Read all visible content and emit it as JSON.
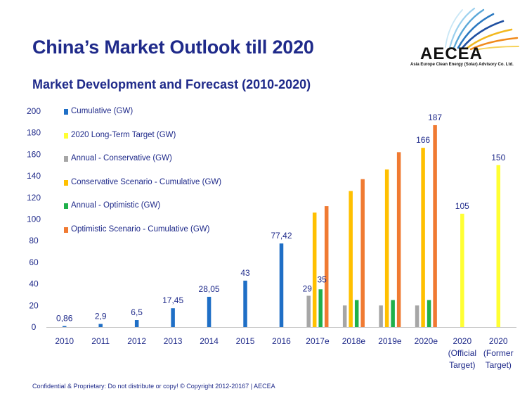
{
  "header": {
    "title": "China’s Market Outlook till 2020",
    "subtitle": "Market Development and Forecast (2010-2020)"
  },
  "logo": {
    "name": "AECEA",
    "tagline": "Asia Europe Clean Energy (Solar) Advisory Co. Ltd."
  },
  "footer": {
    "text": "Confidential & Proprietary: Do not distribute or copy! © Copyright 2012-20167 | AECEA"
  },
  "colors": {
    "title": "#1f2a8a",
    "cumulative": "#1f6fc6",
    "target": "#ffff33",
    "annual_conservative": "#a6a6a6",
    "conservative_cumulative": "#ffc000",
    "annual_optimistic": "#1fb04a",
    "optimistic_cumulative": "#f07a32"
  },
  "chart_data": {
    "type": "bar",
    "title": "Market Development and Forecast (2010-2020)",
    "xlabel": "",
    "ylabel": "",
    "ylim": [
      0,
      200
    ],
    "yticks": [
      0,
      20,
      40,
      60,
      80,
      100,
      120,
      140,
      160,
      180,
      200
    ],
    "categories": [
      "2010",
      "2011",
      "2012",
      "2013",
      "2014",
      "2015",
      "2016",
      "2017e",
      "2018e",
      "2019e",
      "2020e",
      "2020 (Official Target)",
      "2020 (Former Target)"
    ],
    "category_labels": [
      [
        "2010"
      ],
      [
        "2011"
      ],
      [
        "2012"
      ],
      [
        "2013"
      ],
      [
        "2014"
      ],
      [
        "2015"
      ],
      [
        "2016"
      ],
      [
        "2017e"
      ],
      [
        "2018e"
      ],
      [
        "2019e"
      ],
      [
        "2020e"
      ],
      [
        "2020",
        "(Official",
        "Target)"
      ],
      [
        "2020",
        "(Former",
        "Target)"
      ]
    ],
    "legend_position": "top-left",
    "series": [
      {
        "key": "cumulative",
        "name": "Cumulative (GW)",
        "color_key": "cumulative",
        "values": [
          0.86,
          2.9,
          6.5,
          17.45,
          28.05,
          43,
          77.42,
          null,
          null,
          null,
          null,
          null,
          null
        ]
      },
      {
        "key": "target",
        "name": "2020 Long-Term Target (GW)",
        "color_key": "target",
        "values": [
          null,
          null,
          null,
          null,
          null,
          null,
          null,
          null,
          null,
          null,
          null,
          105,
          150
        ]
      },
      {
        "key": "annual_conservative",
        "name": "Annual - Conservative (GW)",
        "color_key": "annual_conservative",
        "values": [
          null,
          null,
          null,
          null,
          null,
          null,
          null,
          29,
          20,
          20,
          20,
          null,
          null
        ]
      },
      {
        "key": "conservative_cumulative",
        "name": "Conservative Scenario - Cumulative (GW)",
        "color_key": "conservative_cumulative",
        "values": [
          null,
          null,
          null,
          null,
          null,
          null,
          null,
          106,
          126,
          146,
          166,
          null,
          null
        ]
      },
      {
        "key": "annual_optimistic",
        "name": "Annual - Optimistic (GW)",
        "color_key": "annual_optimistic",
        "values": [
          null,
          null,
          null,
          null,
          null,
          null,
          null,
          35,
          25,
          25,
          25,
          null,
          null
        ]
      },
      {
        "key": "optimistic_cumulative",
        "name": "Optimistic Scenario - Cumulative (GW)",
        "color_key": "optimistic_cumulative",
        "values": [
          null,
          null,
          null,
          null,
          null,
          null,
          null,
          112,
          137,
          162,
          187,
          null,
          null
        ]
      }
    ],
    "data_labels": [
      {
        "series": "cumulative",
        "index": 0,
        "text": "0,86"
      },
      {
        "series": "cumulative",
        "index": 1,
        "text": "2,9"
      },
      {
        "series": "cumulative",
        "index": 2,
        "text": "6,5"
      },
      {
        "series": "cumulative",
        "index": 3,
        "text": "17,45"
      },
      {
        "series": "cumulative",
        "index": 4,
        "text": "28,05"
      },
      {
        "series": "cumulative",
        "index": 5,
        "text": "43"
      },
      {
        "series": "cumulative",
        "index": 6,
        "text": "77,42"
      },
      {
        "series": "annual_conservative",
        "index": 7,
        "text": "29"
      },
      {
        "series": "annual_optimistic",
        "index": 7,
        "text": "35"
      },
      {
        "series": "conservative_cumulative",
        "index": 10,
        "text": "166"
      },
      {
        "series": "optimistic_cumulative",
        "index": 10,
        "text": "187"
      },
      {
        "series": "target",
        "index": 11,
        "text": "105"
      },
      {
        "series": "target",
        "index": 12,
        "text": "150"
      }
    ]
  }
}
